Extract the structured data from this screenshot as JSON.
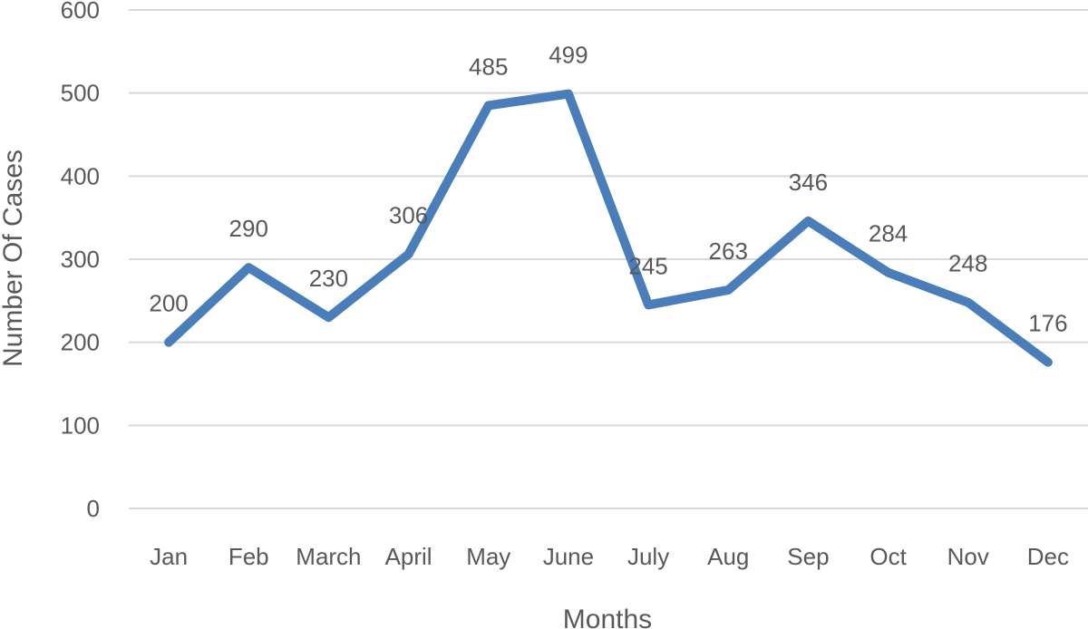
{
  "chart_data": {
    "type": "line",
    "categories": [
      "Jan",
      "Feb",
      "March",
      "April",
      "May",
      "June",
      "July",
      "Aug",
      "Sep",
      "Oct",
      "Nov",
      "Dec"
    ],
    "values": [
      200,
      290,
      230,
      306,
      485,
      499,
      245,
      263,
      346,
      284,
      248,
      176
    ],
    "xlabel": "Months",
    "ylabel": "Number Of Cases",
    "ylim": [
      0,
      600
    ],
    "yticks": [
      0,
      100,
      200,
      300,
      400,
      500,
      600
    ],
    "grid": true,
    "legend": "none",
    "line_color": "#4a7ebb"
  }
}
